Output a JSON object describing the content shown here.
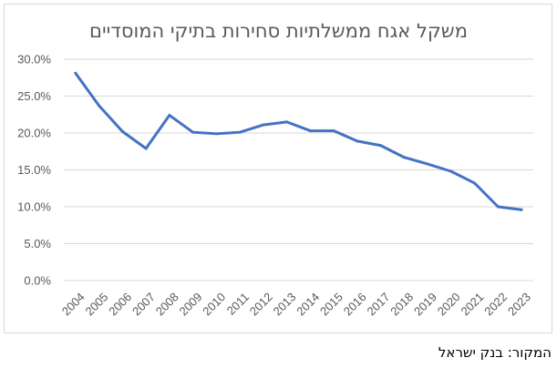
{
  "chart_data": {
    "type": "line",
    "title": "משקל אגח ממשלתיות סחירות בתיקי המוסדיים",
    "xlabel": "",
    "ylabel": "",
    "categories": [
      "2004",
      "2005",
      "2006",
      "2007",
      "2008",
      "2009",
      "2010",
      "2011",
      "2012",
      "2013",
      "2014",
      "2015",
      "2016",
      "2017",
      "2018",
      "2019",
      "2020",
      "2021",
      "2022",
      "2023"
    ],
    "series": [
      {
        "values": [
          28.1,
          23.7,
          20.2,
          17.9,
          22.4,
          20.1,
          19.9,
          20.1,
          21.1,
          21.5,
          20.3,
          20.3,
          18.9,
          18.3,
          16.7,
          15.8,
          14.8,
          13.2,
          10.0,
          9.6
        ],
        "color": "#4472c4"
      }
    ],
    "ylim": [
      0,
      30
    ],
    "yticks": [
      "0.0%",
      "5.0%",
      "10.0%",
      "15.0%",
      "20.0%",
      "25.0%",
      "30.0%"
    ],
    "grid": true,
    "legend": "none"
  },
  "source_note": "המקור: בנק ישראל"
}
